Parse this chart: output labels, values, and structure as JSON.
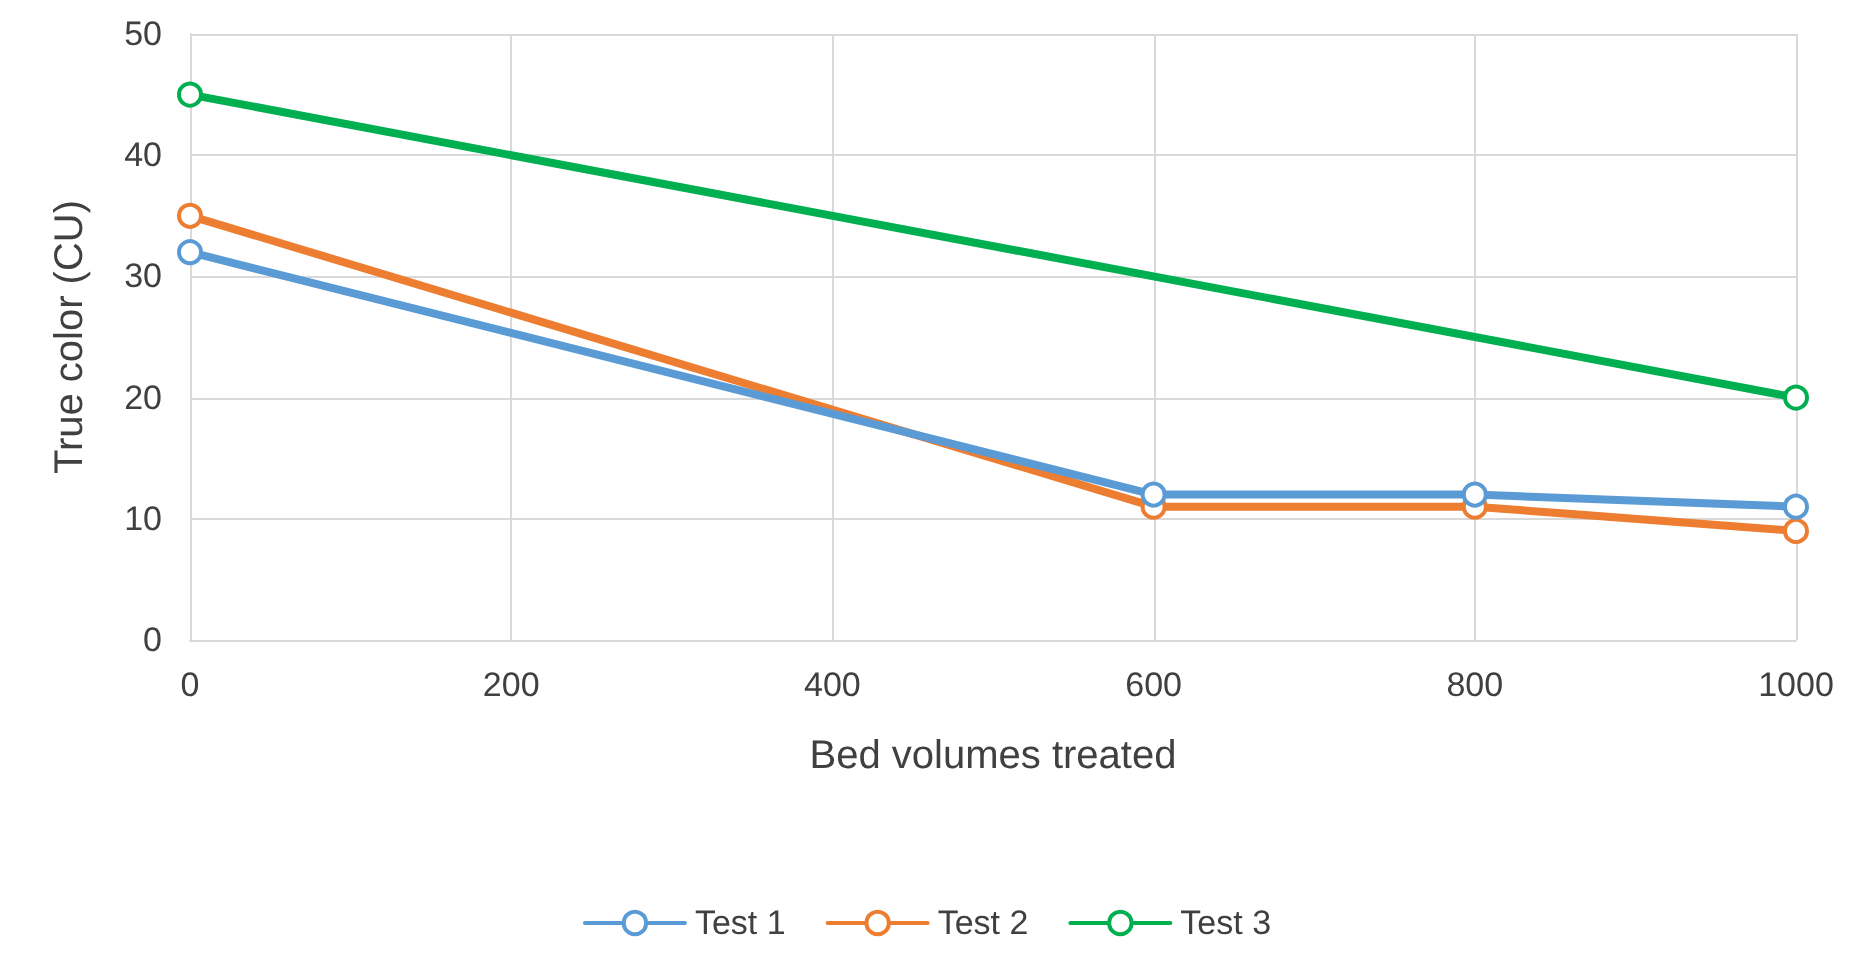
{
  "chart_data": {
    "type": "line",
    "xlabel": "Bed volumes treated",
    "ylabel": "True color (CU)",
    "series": [
      {
        "name": "Test 1",
        "color": "#5b9bd5",
        "x": [
          0,
          600,
          800,
          1000
        ],
        "values": [
          32,
          12,
          12,
          11
        ]
      },
      {
        "name": "Test 2",
        "color": "#ed7d31",
        "x": [
          0,
          600,
          800,
          1000
        ],
        "values": [
          35,
          11,
          11,
          9
        ]
      },
      {
        "name": "Test 3",
        "color": "#00b050",
        "x": [
          0,
          1000
        ],
        "values": [
          45,
          20
        ]
      }
    ],
    "xlim": [
      0,
      1000
    ],
    "xticks": [
      0,
      200,
      400,
      600,
      800,
      1000
    ],
    "ylim": [
      0,
      50
    ],
    "yticks": [
      0,
      10,
      20,
      30,
      40,
      50
    ],
    "grid": true,
    "legend": "bottom",
    "marker": "circle",
    "line_style": "solid"
  }
}
